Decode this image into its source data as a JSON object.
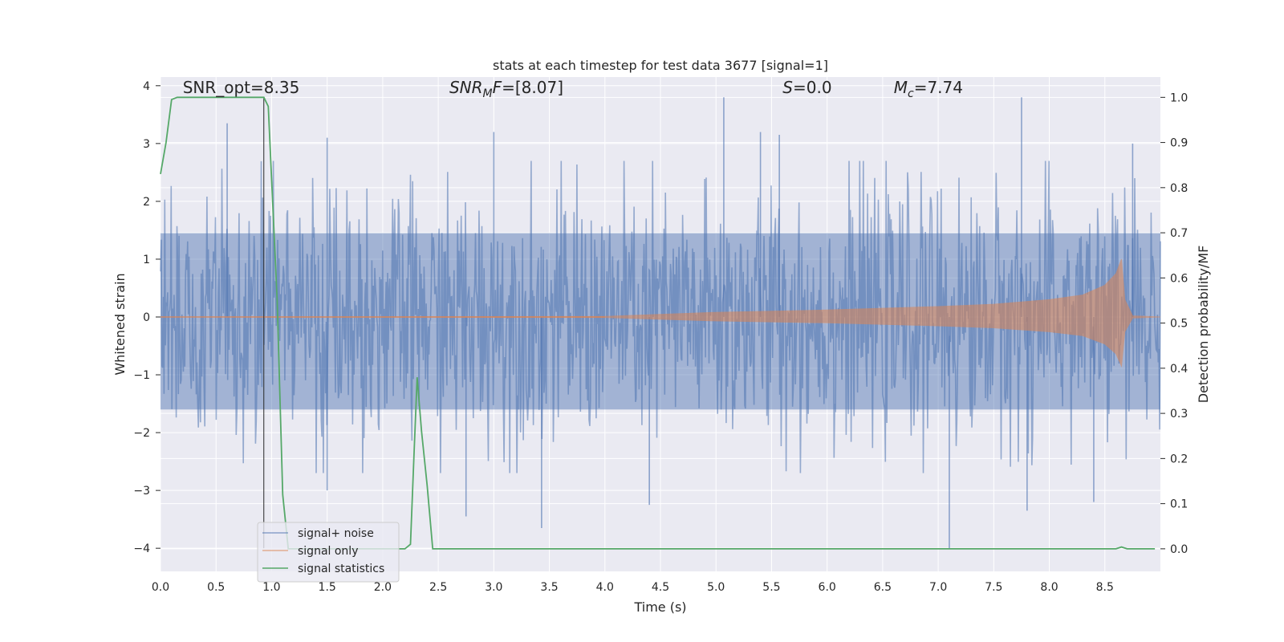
{
  "chart_data": {
    "type": "line",
    "title": "stats at each timestep for test data 3677 [signal=1]",
    "xlabel": "Time (s)",
    "ylabel_left": "Whitened strain",
    "ylabel_right": "Detection probability/MF",
    "xlim": [
      0,
      9.0
    ],
    "ylim_left": [
      -4.4,
      4.15
    ],
    "ylim_right": [
      -0.05,
      1.045
    ],
    "x_ticks": [
      "0.0",
      "0.5",
      "1.0",
      "1.5",
      "2.0",
      "2.5",
      "3.0",
      "3.5",
      "4.0",
      "4.5",
      "5.0",
      "5.5",
      "6.0",
      "6.5",
      "7.0",
      "7.5",
      "8.0",
      "8.5"
    ],
    "x_tick_values": [
      0.0,
      0.5,
      1.0,
      1.5,
      2.0,
      2.5,
      3.0,
      3.5,
      4.0,
      4.5,
      5.0,
      5.5,
      6.0,
      6.5,
      7.0,
      7.5,
      8.0,
      8.5
    ],
    "y_left_ticks": [
      "4",
      "3",
      "2",
      "1",
      "0",
      "−1",
      "−2",
      "−3",
      "−4"
    ],
    "y_left_tick_values": [
      4,
      3,
      2,
      1,
      0,
      -1,
      -2,
      -3,
      -4
    ],
    "y_right_ticks": [
      "1.0",
      "0.9",
      "0.8",
      "0.7",
      "0.6",
      "0.5",
      "0.4",
      "0.3",
      "0.2",
      "0.1",
      "0.0"
    ],
    "y_right_tick_values": [
      1.0,
      0.9,
      0.8,
      0.7,
      0.6,
      0.5,
      0.4,
      0.3,
      0.2,
      0.1,
      0.0
    ],
    "annotations": [
      {
        "text": "SNR_opt=8.35",
        "x": 0.2,
        "y": 3.9
      },
      {
        "text": "SNR_MF=[8.07]",
        "x": 2.6,
        "y": 3.9
      },
      {
        "text": "S=0.0",
        "x": 5.6,
        "y": 3.9
      },
      {
        "text": "M_c=7.74",
        "x": 6.6,
        "y": 3.9
      }
    ],
    "vline_x": 0.93,
    "grid": true,
    "legend_position": "lower-left",
    "series": [
      {
        "name": "signal+ noise",
        "color": "#4c72b0",
        "axis": "left",
        "style": "noise",
        "x_range": [
          0,
          9.0
        ],
        "typical_amplitude": 1.7,
        "peak_values": [
          {
            "x": 0.6,
            "y": 3.35
          },
          {
            "x": 1.5,
            "y": 3.1
          },
          {
            "x": 3.0,
            "y": 3.2
          },
          {
            "x": 5.07,
            "y": 3.8
          },
          {
            "x": 5.4,
            "y": 3.2
          },
          {
            "x": 5.57,
            "y": 3.15
          },
          {
            "x": 7.75,
            "y": 3.8
          },
          {
            "x": 8.75,
            "y": 3.0
          },
          {
            "x": 3.43,
            "y": -3.65
          },
          {
            "x": 2.75,
            "y": -3.45
          },
          {
            "x": 7.1,
            "y": -4.0
          },
          {
            "x": 7.8,
            "y": -3.35
          },
          {
            "x": 8.4,
            "y": -3.2
          },
          {
            "x": 1.5,
            "y": -3.0
          },
          {
            "x": 4.4,
            "y": -3.25
          }
        ]
      },
      {
        "name": "signal only",
        "color": "#dd8452",
        "axis": "left",
        "style": "chirp",
        "envelope_x": [
          0.0,
          4.0,
          5.0,
          6.0,
          7.0,
          7.5,
          8.0,
          8.3,
          8.5,
          8.6,
          8.65,
          8.68,
          8.75,
          9.0
        ],
        "envelope_y": [
          0.0,
          0.01,
          0.08,
          0.12,
          0.18,
          0.22,
          0.3,
          0.38,
          0.55,
          0.75,
          1.0,
          0.3,
          0.02,
          0.0
        ]
      },
      {
        "name": "signal statistics",
        "color": "#55a868",
        "axis": "right",
        "style": "line",
        "x": [
          0.0,
          0.05,
          0.1,
          0.15,
          0.3,
          0.5,
          0.7,
          0.88,
          0.93,
          0.97,
          1.0,
          1.05,
          1.1,
          1.15,
          1.5,
          2.0,
          2.2,
          2.25,
          2.28,
          2.31,
          2.35,
          2.4,
          2.45,
          2.5,
          3.0,
          5.0,
          7.0,
          8.0,
          8.5,
          8.6,
          8.65,
          8.7,
          8.8,
          8.95
        ],
        "y": [
          0.83,
          0.9,
          0.995,
          1.0,
          1.0,
          1.0,
          1.0,
          1.0,
          1.0,
          0.98,
          0.82,
          0.55,
          0.12,
          0.0,
          0.0,
          0.0,
          0.0,
          0.01,
          0.2,
          0.38,
          0.26,
          0.14,
          0.0,
          0.0,
          0.0,
          0.0,
          0.0,
          0.0,
          0.0,
          0.0,
          0.004,
          0.0,
          0.0,
          0.0
        ]
      }
    ]
  }
}
